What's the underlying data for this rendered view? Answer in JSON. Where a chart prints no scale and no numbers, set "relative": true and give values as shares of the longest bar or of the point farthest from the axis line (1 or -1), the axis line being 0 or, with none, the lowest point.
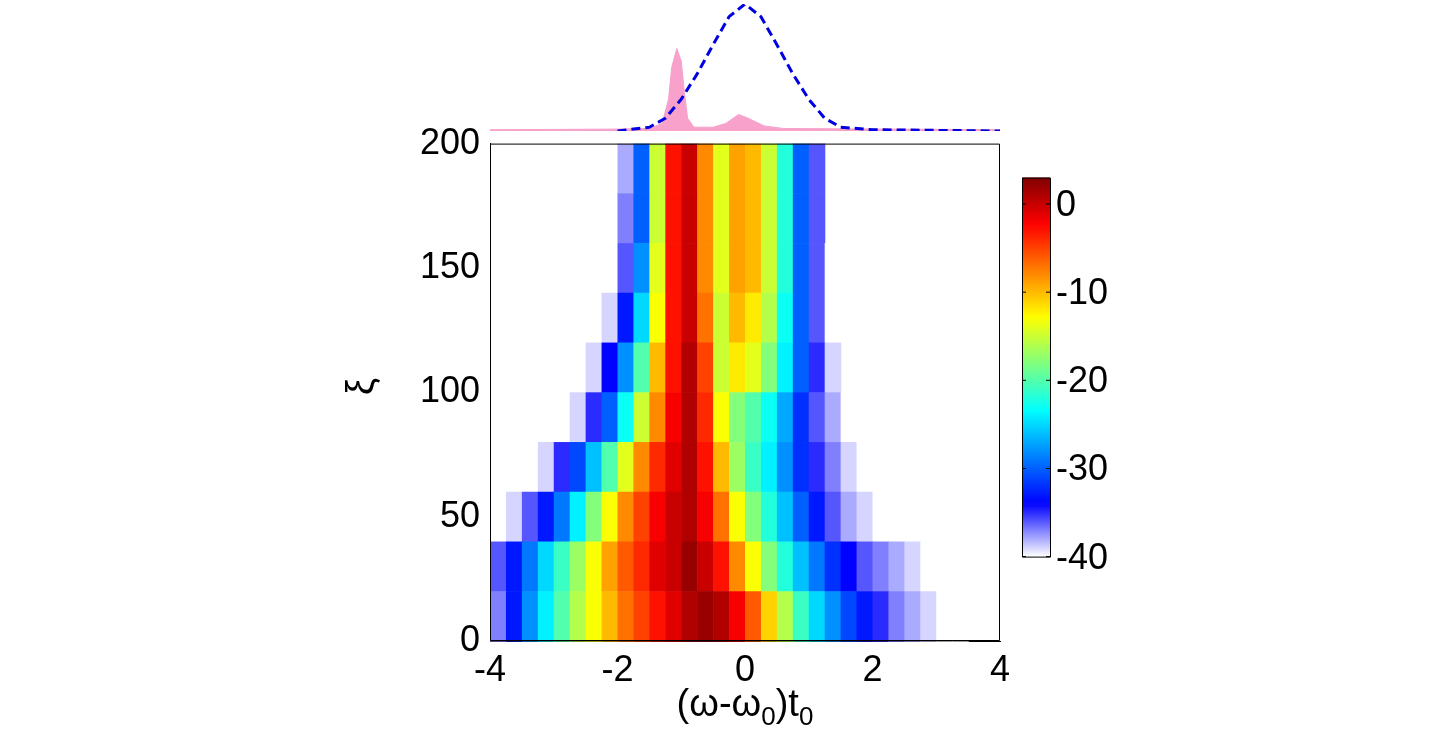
{
  "chart_data": [
    {
      "type": "line",
      "relative": true,
      "xlim": [
        -4,
        4
      ],
      "tick_labels": false,
      "marker": "none",
      "series": [
        {
          "type": "area",
          "color": "#f7a1cb",
          "x": [
            -4,
            -2,
            -1.5,
            -1.3,
            -1.2,
            -1.15,
            -1.07,
            -1.0,
            -0.95,
            -0.9,
            -0.8,
            -0.5,
            -0.3,
            -0.1,
            0.05,
            0.3,
            0.6,
            4
          ],
          "values": [
            0.01,
            0.015,
            0.02,
            0.06,
            0.25,
            0.5,
            0.65,
            0.55,
            0.3,
            0.1,
            0.03,
            0.03,
            0.06,
            0.13,
            0.1,
            0.04,
            0.02,
            0.01
          ]
        },
        {
          "type": "line",
          "line_style": "dashed",
          "color": "#0000e0",
          "x": [
            -2,
            -1.5,
            -1.25,
            -1,
            -0.75,
            -0.5,
            -0.25,
            0,
            0.25,
            0.5,
            0.75,
            1,
            1.25,
            1.5,
            2,
            4
          ],
          "values": [
            0,
            0.03,
            0.1,
            0.25,
            0.45,
            0.68,
            0.9,
            1,
            0.9,
            0.68,
            0.45,
            0.25,
            0.1,
            0.03,
            0.01,
            0
          ]
        }
      ]
    },
    {
      "type": "heatmap",
      "xlabel": "(ω-ω$_{0}$)t$_{0}$",
      "ylabel": "ξ",
      "xlim": [
        -4,
        4
      ],
      "xticks": [
        -4,
        -2,
        0,
        2,
        4
      ],
      "ylim": [
        0,
        200
      ],
      "yticks": [
        0,
        50,
        100,
        150,
        200
      ],
      "clim": [
        -40,
        3
      ],
      "cticks": [
        -40,
        -30,
        -20,
        -10,
        0
      ],
      "x": [
        -3.875,
        -3.625,
        -3.375,
        -3.125,
        -2.875,
        -2.625,
        -2.375,
        -2.125,
        -1.875,
        -1.625,
        -1.375,
        -1.125,
        -0.875,
        -0.625,
        -0.375,
        -0.125,
        0.125,
        0.375,
        0.625,
        0.875,
        1.125,
        1.375,
        1.625,
        1.875,
        2.125,
        2.375,
        2.625,
        2.875,
        3.125,
        3.375,
        3.625,
        3.875
      ],
      "y": [
        190,
        170,
        150,
        130,
        110,
        90,
        70,
        50,
        30,
        10
      ],
      "cells": [
        [
          null,
          null,
          null,
          null,
          null,
          null,
          null,
          null,
          -38,
          -30,
          -15,
          -3,
          0,
          -8,
          -14,
          -9,
          -10,
          -15,
          -22,
          -30,
          -36,
          null,
          null,
          null,
          null,
          null,
          null,
          null,
          null,
          null,
          null,
          null
        ],
        [
          null,
          null,
          null,
          null,
          null,
          null,
          null,
          null,
          -37,
          -30,
          -15,
          -3,
          0,
          -8,
          -14,
          -9,
          -10,
          -15,
          -22,
          -30,
          -36,
          null,
          null,
          null,
          null,
          null,
          null,
          null,
          null,
          null,
          null,
          null
        ],
        [
          null,
          null,
          null,
          null,
          null,
          null,
          null,
          -40,
          -36,
          -28,
          -14,
          -3,
          0,
          -8,
          -14,
          -9,
          -10,
          -15,
          -22,
          -30,
          -36,
          -40,
          null,
          null,
          null,
          null,
          null,
          null,
          null,
          null,
          null,
          null
        ],
        [
          null,
          null,
          null,
          null,
          null,
          null,
          null,
          -39,
          -33,
          -25,
          -13,
          -3,
          0,
          -7,
          -15,
          -10,
          -12,
          -16,
          -23,
          -30,
          -36,
          -40,
          null,
          null,
          null,
          null,
          null,
          null,
          null,
          null,
          null,
          null
        ],
        [
          null,
          null,
          null,
          null,
          null,
          null,
          -39,
          -34,
          -28,
          -20,
          -10,
          -3,
          1,
          -5,
          -15,
          -12,
          -14,
          -18,
          -24,
          -30,
          -35,
          -39,
          null,
          null,
          null,
          null,
          null,
          null,
          null,
          null,
          null,
          null
        ],
        [
          null,
          null,
          null,
          null,
          null,
          -39,
          -35,
          -30,
          -23,
          -15,
          -8,
          -2,
          1,
          -4,
          -13,
          -18,
          -20,
          -23,
          -27,
          -32,
          -36,
          -38,
          -40,
          null,
          null,
          null,
          null,
          null,
          null,
          null,
          null,
          null
        ],
        [
          null,
          null,
          null,
          -39,
          -35,
          -31,
          -26,
          -20,
          -14,
          -8,
          -4,
          -1,
          1,
          -3,
          -10,
          -17,
          -21,
          -24,
          -28,
          -32,
          -35,
          -37,
          -39,
          -40,
          null,
          null,
          null,
          null,
          null,
          null,
          null,
          null
        ],
        [
          null,
          -39,
          -36,
          -33,
          -29,
          -24,
          -18,
          -13,
          -8,
          -5,
          -2,
          0,
          1,
          -2,
          -7,
          -13,
          -18,
          -22,
          -26,
          -30,
          -33,
          -36,
          -38,
          -39,
          -40,
          -40,
          null,
          null,
          null,
          null,
          null,
          null
        ],
        [
          -36,
          -33,
          -29,
          -25,
          -21,
          -17,
          -13,
          -9,
          -6,
          -4,
          -1,
          0,
          2,
          0,
          -3,
          -8,
          -13,
          -18,
          -22,
          -26,
          -29,
          -32,
          -34,
          -36,
          -37,
          -38,
          -39,
          -40,
          null,
          null,
          null,
          null
        ],
        [
          -37,
          -33,
          -28,
          -24,
          -20,
          -16,
          -13,
          -10,
          -7,
          -5,
          -3,
          -1,
          1,
          2,
          1,
          -2,
          -6,
          -11,
          -16,
          -21,
          -25,
          -28,
          -31,
          -33,
          -35,
          -37,
          -38,
          -39,
          -40,
          -40,
          null,
          null
        ]
      ]
    }
  ]
}
